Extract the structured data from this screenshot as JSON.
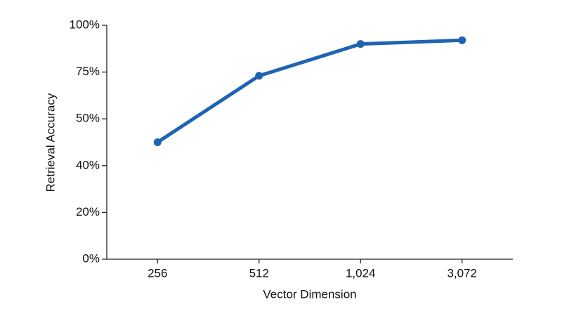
{
  "chart_data": {
    "type": "line",
    "x_label": "Vector Dimension",
    "y_label": "Retrieval Accuracy",
    "categories": [
      "256",
      "512",
      "1,024",
      "3,072"
    ],
    "series": [
      {
        "name": "Retrieval Accuracy",
        "color": "#1f63b3",
        "values": [
          45,
          73,
          90,
          92
        ]
      }
    ],
    "ylim": [
      0,
      100
    ],
    "yticks": [
      {
        "value": 0,
        "label": "0%"
      },
      {
        "value": 20,
        "label": "20%"
      },
      {
        "value": 40,
        "label": "40%"
      },
      {
        "value": 50,
        "label": "50%"
      },
      {
        "value": 75,
        "label": "75%"
      },
      {
        "value": 100,
        "label": "100%"
      }
    ]
  }
}
